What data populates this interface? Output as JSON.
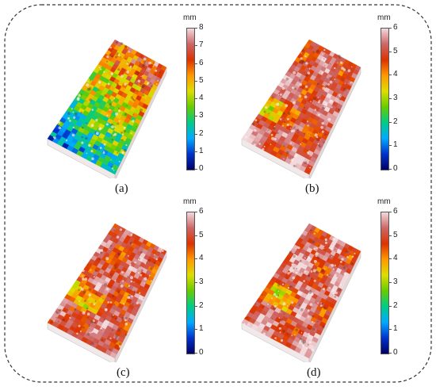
{
  "panels": [
    {
      "caption": "(a)",
      "unit": "mm",
      "ticks": [
        "0",
        "1",
        "2",
        "3",
        "4",
        "5",
        "6",
        "7",
        "8"
      ],
      "max": 8,
      "mean_level": 0.72
    },
    {
      "caption": "(b)",
      "unit": "mm",
      "ticks": [
        "0",
        "1",
        "2",
        "3",
        "4",
        "5",
        "6"
      ],
      "max": 6,
      "mean_level": 0.86
    },
    {
      "caption": "(c)",
      "unit": "mm",
      "ticks": [
        "0",
        "1",
        "2",
        "3",
        "4",
        "5",
        "6"
      ],
      "max": 6,
      "mean_level": 0.84
    },
    {
      "caption": "(d)",
      "unit": "mm",
      "ticks": [
        "0",
        "1",
        "2",
        "3",
        "4",
        "5",
        "6"
      ],
      "max": 6,
      "mean_level": 0.87
    }
  ],
  "colors": {
    "frame_border": "#333333",
    "colormap": [
      "#000066",
      "#0033cc",
      "#00aaff",
      "#00cc88",
      "#66cc00",
      "#dddd00",
      "#ff9900",
      "#dd3300",
      "#cc6666",
      "#f2d9dc"
    ]
  }
}
